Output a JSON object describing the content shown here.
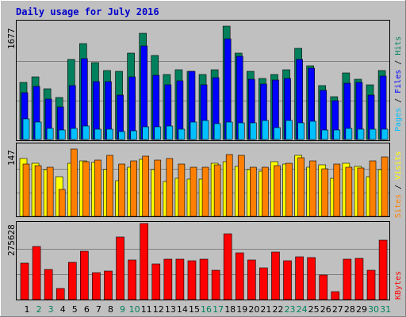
{
  "chart_data": [
    {
      "type": "bar",
      "title": "Daily usage for July 2016",
      "categories": [
        "1",
        "2",
        "3",
        "4",
        "5",
        "6",
        "7",
        "8",
        "9",
        "10",
        "11",
        "12",
        "13",
        "14",
        "15",
        "16",
        "17",
        "18",
        "19",
        "20",
        "21",
        "22",
        "23",
        "24",
        "25",
        "26",
        "27",
        "28",
        "29",
        "30",
        "31"
      ],
      "ymax_label": "1677",
      "ylim": [
        0,
        1677
      ],
      "legend": [
        {
          "name": "Pages",
          "color": "#00c0ff"
        },
        {
          "name": "Files",
          "color": "#0000ff"
        },
        {
          "name": "Hits",
          "color": "#00805c"
        }
      ],
      "series": [
        {
          "name": "Hits",
          "color": "#00805c",
          "values": [
            820,
            900,
            720,
            600,
            1150,
            1370,
            1100,
            990,
            980,
            1230,
            1520,
            1200,
            925,
            1000,
            980,
            930,
            1000,
            1620,
            1230,
            980,
            875,
            930,
            1000,
            1300,
            1050,
            770,
            610,
            950,
            860,
            780,
            990
          ]
        },
        {
          "name": "Files",
          "color": "#0000ff",
          "values": [
            670,
            760,
            580,
            460,
            770,
            1160,
            830,
            830,
            640,
            900,
            1340,
            920,
            780,
            840,
            980,
            780,
            880,
            1440,
            1190,
            860,
            790,
            850,
            870,
            1150,
            1020,
            700,
            560,
            800,
            820,
            640,
            910
          ]
        },
        {
          "name": "Pages",
          "color": "#00c0ff",
          "values": [
            290,
            250,
            160,
            140,
            160,
            190,
            150,
            150,
            110,
            130,
            180,
            180,
            190,
            150,
            250,
            270,
            230,
            250,
            240,
            240,
            270,
            170,
            270,
            240,
            260,
            140,
            140,
            160,
            150,
            150,
            150
          ]
        }
      ]
    },
    {
      "type": "bar",
      "categories": [
        "1",
        "2",
        "3",
        "4",
        "5",
        "6",
        "7",
        "8",
        "9",
        "10",
        "11",
        "12",
        "13",
        "14",
        "15",
        "16",
        "17",
        "18",
        "19",
        "20",
        "21",
        "22",
        "23",
        "24",
        "25",
        "26",
        "27",
        "28",
        "29",
        "30",
        "31"
      ],
      "ymax_label": "147",
      "ylim": [
        0,
        147
      ],
      "legend": [
        {
          "name": "Sites",
          "color": "#ff8000"
        },
        {
          "name": "Visits",
          "color": "#ffff00"
        }
      ],
      "series": [
        {
          "name": "Visits",
          "color": "#ffff00",
          "values": [
            120,
            110,
            96,
            82,
            110,
            115,
            111,
            96,
            74,
            101,
            118,
            97,
            72,
            78,
            77,
            77,
            110,
            113,
            103,
            96,
            93,
            112,
            107,
            125,
            102,
            106,
            79,
            110,
            103,
            82,
            97
          ]
        },
        {
          "name": "Sites",
          "color": "#ff8000",
          "values": [
            107,
            104,
            101,
            56,
            139,
            113,
            116,
            125,
            108,
            115,
            124,
            116,
            120,
            107,
            101,
            101,
            106,
            127,
            125,
            101,
            101,
            104,
            110,
            121,
            114,
            98,
            108,
            102,
            100,
            115,
            122
          ]
        }
      ]
    },
    {
      "type": "bar",
      "categories": [
        "1",
        "2",
        "3",
        "4",
        "5",
        "6",
        "7",
        "8",
        "9",
        "10",
        "11",
        "12",
        "13",
        "14",
        "15",
        "16",
        "17",
        "18",
        "19",
        "20",
        "21",
        "22",
        "23",
        "24",
        "25",
        "26",
        "27",
        "28",
        "29",
        "30",
        "31"
      ],
      "ymax_label": "275628",
      "ylim": [
        0,
        275628
      ],
      "legend": [
        {
          "name": "KBytes",
          "color": "#ff0000"
        }
      ],
      "series": [
        {
          "name": "KBytes",
          "color": "#ff0000",
          "values": [
            133000,
            193000,
            109000,
            41000,
            136000,
            176000,
            97000,
            104000,
            226000,
            143000,
            275628,
            130000,
            146000,
            146000,
            141000,
            145000,
            106000,
            237000,
            170000,
            143000,
            115000,
            171000,
            140000,
            155000,
            152000,
            89000,
            30000,
            146000,
            148000,
            106000,
            215000
          ]
        }
      ]
    }
  ],
  "day_labels": {
    "weekend_color": "#00805c",
    "weekday_color": "#000000",
    "weekend_days": [
      2,
      3,
      9,
      10,
      16,
      17,
      23,
      24,
      30,
      31
    ]
  }
}
